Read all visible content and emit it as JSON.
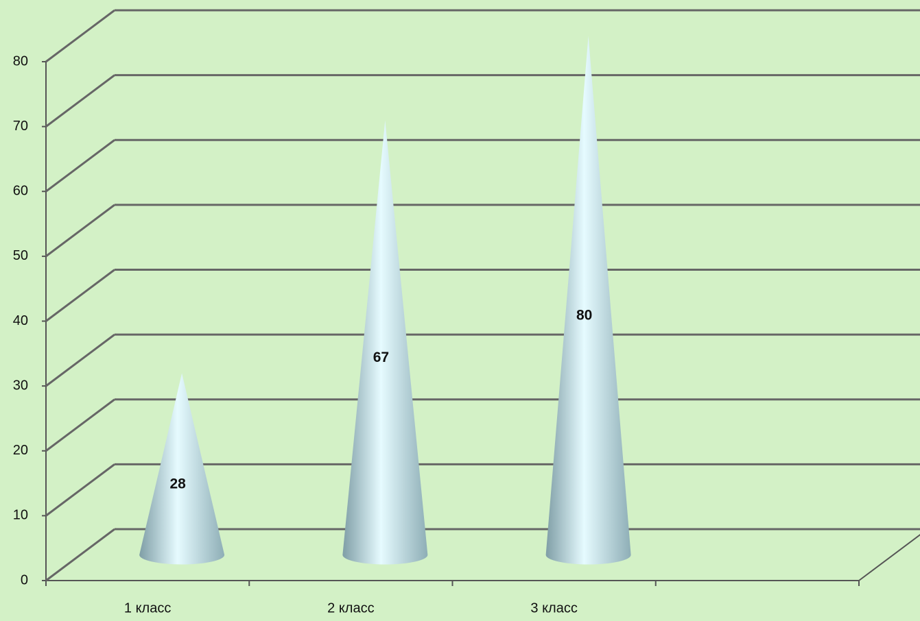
{
  "chart_data": {
    "type": "cone",
    "categories": [
      "1 класс",
      "2 класс",
      "3 класс",
      null
    ],
    "values": [
      28,
      67,
      80,
      null
    ],
    "color": "#b8d8e0",
    "ylim": [
      0,
      80
    ],
    "yticks": [
      0,
      10,
      20,
      30,
      40,
      50,
      60,
      70,
      80
    ],
    "grid": true
  }
}
